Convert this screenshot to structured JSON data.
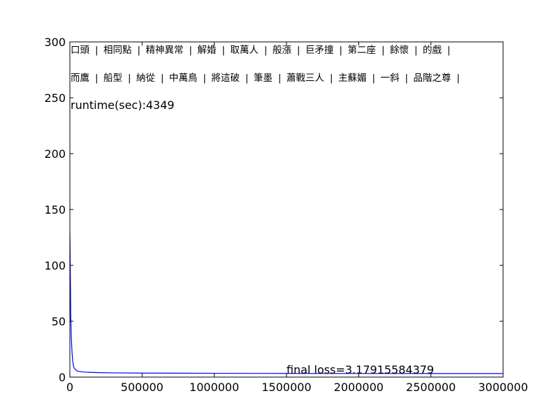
{
  "chart_data": {
    "type": "line",
    "title": "",
    "xlabel": "",
    "ylabel": "",
    "xlim": [
      0,
      3000000
    ],
    "ylim": [
      0,
      300
    ],
    "xticks": [
      "0",
      "500000",
      "1000000",
      "1500000",
      "2000000",
      "2500000",
      "3000000"
    ],
    "yticks": [
      "0",
      "50",
      "100",
      "150",
      "200",
      "250",
      "300"
    ],
    "grid": false,
    "legend": "none",
    "series": [
      {
        "color": "#0000ff",
        "x": [
          0,
          3000,
          6000,
          10000,
          15000,
          20000,
          25000,
          30000,
          40000,
          50000,
          60000,
          80000,
          100000,
          150000,
          200000,
          300000,
          500000,
          750000,
          1000000,
          1500000,
          2000000,
          2500000,
          3000000
        ],
        "y": [
          130,
          95,
          55,
          35,
          22,
          14,
          10,
          8,
          6.5,
          5.5,
          5.2,
          4.8,
          4.5,
          4.2,
          4.0,
          3.8,
          3.6,
          3.5,
          3.4,
          3.3,
          3.25,
          3.2,
          3.18
        ]
      }
    ],
    "annotations": {
      "word_row_1": [
        "口頭",
        "相同點",
        "精神異常",
        "解婚",
        "取萬人",
        "般漲",
        "巨矛撞",
        "第二座",
        "餘懷",
        "的戲"
      ],
      "word_row_2": [
        "而鷹",
        "船型",
        "納從",
        "中萬鳥",
        "將這破",
        "筆墨",
        "蕭戰三人",
        "主蘇媚",
        "一斜",
        "品階之尊"
      ],
      "runtime": "runtime(sec):4349",
      "final_loss": "final loss=3.17915584379"
    }
  }
}
